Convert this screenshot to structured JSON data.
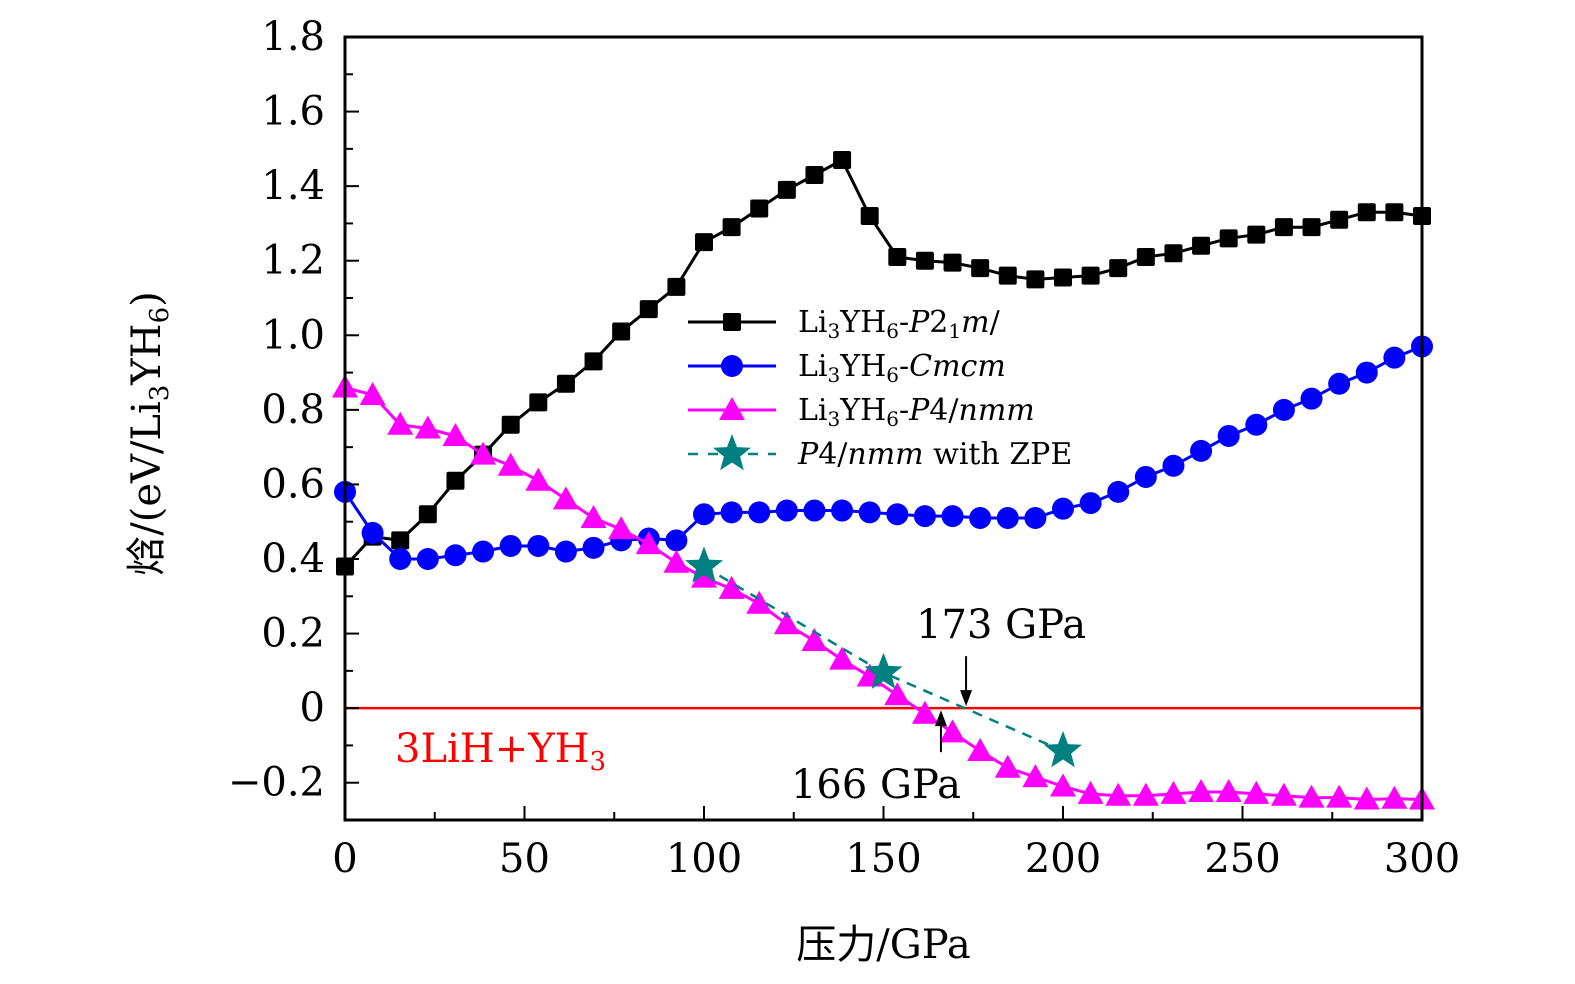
{
  "chart_data": {
    "type": "line",
    "title": "",
    "xlabel": "压力/GPa",
    "ylabel": "焓/(eV/Li3YH6)",
    "ylabel_parts": {
      "prefix": "焓/(eV/Li",
      "sub1": "3",
      "mid": "YH",
      "sub2": "6",
      "suffix": ")"
    },
    "xlim": [
      0,
      300
    ],
    "ylim": [
      -0.3,
      1.8
    ],
    "xticks": [
      0,
      50,
      100,
      150,
      200,
      250,
      300
    ],
    "xtick_labels": [
      "0",
      "50",
      "100",
      "150",
      "200",
      "250",
      "300"
    ],
    "yticks": [
      -0.2,
      0,
      0.2,
      0.4,
      0.6,
      0.8,
      1.0,
      1.2,
      1.4,
      1.6,
      1.8
    ],
    "ytick_labels": [
      "−0.2",
      "0",
      "0.2",
      "0.4",
      "0.6",
      "0.8",
      "1.0",
      "1.2",
      "1.4",
      "1.6",
      "1.8"
    ],
    "grid": false,
    "legend_position": "center",
    "x_step": 7.6923,
    "series": [
      {
        "name": "Li3YH6-P21/m",
        "legend": {
          "a": "Li",
          "s1": "3",
          "b": "YH",
          "s2": "6",
          "c": "-",
          "it": "P",
          "d": "2",
          "s3": "1",
          "e": "/",
          "it2": "m"
        },
        "color": "#000000",
        "marker": "square",
        "dashed": false,
        "values": [
          0.38,
          0.46,
          0.45,
          0.52,
          0.61,
          0.68,
          0.76,
          0.82,
          0.87,
          0.93,
          1.01,
          1.07,
          1.13,
          1.25,
          1.29,
          1.34,
          1.39,
          1.43,
          1.47,
          1.32,
          1.21,
          1.2,
          1.195,
          1.18,
          1.16,
          1.15,
          1.155,
          1.16,
          1.18,
          1.21,
          1.22,
          1.24,
          1.26,
          1.27,
          1.29,
          1.29,
          1.31,
          1.33,
          1.33,
          1.32
        ]
      },
      {
        "name": "Li3YH6-Cmcm",
        "legend": {
          "a": "Li",
          "s1": "3",
          "b": "YH",
          "s2": "6",
          "c": "-",
          "it": "Cmcm"
        },
        "color": "#0000ff",
        "marker": "circle",
        "dashed": false,
        "values": [
          0.58,
          0.47,
          0.4,
          0.4,
          0.41,
          0.42,
          0.435,
          0.435,
          0.42,
          0.43,
          0.45,
          0.455,
          0.45,
          0.52,
          0.525,
          0.525,
          0.53,
          0.53,
          0.53,
          0.525,
          0.52,
          0.515,
          0.515,
          0.51,
          0.51,
          0.51,
          0.535,
          0.55,
          0.58,
          0.62,
          0.65,
          0.69,
          0.73,
          0.76,
          0.8,
          0.83,
          0.87,
          0.9,
          0.94,
          0.97
        ]
      },
      {
        "name": "Li3YH6-P4/nmm",
        "legend": {
          "a": "Li",
          "s1": "3",
          "b": "YH",
          "s2": "6",
          "c": "-",
          "it": "P",
          "d": "4/",
          "it2": "nmm"
        },
        "color": "#ff00ff",
        "marker": "triangle",
        "dashed": false,
        "values": [
          0.86,
          0.84,
          0.76,
          0.75,
          0.73,
          0.68,
          0.65,
          0.61,
          0.56,
          0.51,
          0.48,
          0.44,
          0.39,
          0.35,
          0.32,
          0.28,
          0.225,
          0.18,
          0.13,
          0.085,
          0.035,
          -0.015,
          -0.065,
          -0.115,
          -0.16,
          -0.185,
          -0.21,
          -0.23,
          -0.235,
          -0.235,
          -0.23,
          -0.225,
          -0.225,
          -0.23,
          -0.235,
          -0.24,
          -0.24,
          -0.245,
          -0.243,
          -0.245
        ]
      },
      {
        "name": "P4/nmm with ZPE",
        "legend": {
          "it": "P",
          "d": "4/",
          "it2": "nmm",
          "e": " with ZPE"
        },
        "color": "#008080",
        "marker": "star",
        "dashed": true,
        "x": [
          100,
          150,
          200
        ],
        "values": [
          0.38,
          0.095,
          -0.115
        ]
      }
    ],
    "reference_line": {
      "y": 0,
      "color": "#ff0000",
      "label": {
        "a": "3LiH+YH",
        "sub": "3"
      }
    },
    "annotations": [
      {
        "text": "173 GPa",
        "x": 173,
        "arrow": "down"
      },
      {
        "text": "166 GPa",
        "x": 166,
        "arrow": "up"
      }
    ]
  }
}
